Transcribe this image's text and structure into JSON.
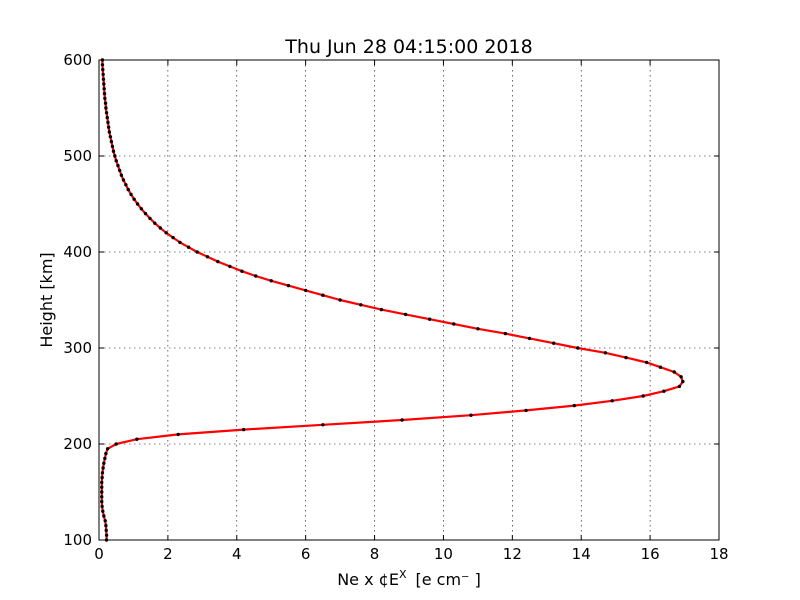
{
  "chart_data": {
    "type": "line",
    "title": "Thu Jun 28 04:15:00 2018",
    "xlabel": "Ne x ¢E",
    "xlabel_superscript": "X",
    "xlabel_units": "[e cm⁻ ]",
    "ylabel": "Height [km]",
    "xlim": [
      0,
      18
    ],
    "ylim": [
      100,
      600
    ],
    "xticks": [
      0,
      2,
      4,
      6,
      8,
      10,
      12,
      14,
      16,
      18
    ],
    "yticks": [
      100,
      200,
      300,
      400,
      500,
      600
    ],
    "grid": true,
    "colors": {
      "line": "#ff0000",
      "marker": "#000000",
      "frame": "#000000"
    },
    "series": [
      {
        "points": [
          {
            "x": 0.22,
            "y": 100
          },
          {
            "x": 0.22,
            "y": 105
          },
          {
            "x": 0.21,
            "y": 110
          },
          {
            "x": 0.2,
            "y": 115
          },
          {
            "x": 0.18,
            "y": 120
          },
          {
            "x": 0.14,
            "y": 125
          },
          {
            "x": 0.11,
            "y": 130
          },
          {
            "x": 0.09,
            "y": 135
          },
          {
            "x": 0.08,
            "y": 140
          },
          {
            "x": 0.08,
            "y": 145
          },
          {
            "x": 0.08,
            "y": 150
          },
          {
            "x": 0.08,
            "y": 155
          },
          {
            "x": 0.08,
            "y": 160
          },
          {
            "x": 0.09,
            "y": 165
          },
          {
            "x": 0.1,
            "y": 170
          },
          {
            "x": 0.12,
            "y": 175
          },
          {
            "x": 0.14,
            "y": 180
          },
          {
            "x": 0.17,
            "y": 185
          },
          {
            "x": 0.2,
            "y": 190
          },
          {
            "x": 0.25,
            "y": 195
          },
          {
            "x": 0.5,
            "y": 200
          },
          {
            "x": 1.1,
            "y": 205
          },
          {
            "x": 2.3,
            "y": 210
          },
          {
            "x": 4.2,
            "y": 215
          },
          {
            "x": 6.5,
            "y": 220
          },
          {
            "x": 8.8,
            "y": 225
          },
          {
            "x": 10.8,
            "y": 230
          },
          {
            "x": 12.4,
            "y": 235
          },
          {
            "x": 13.8,
            "y": 240
          },
          {
            "x": 14.9,
            "y": 245
          },
          {
            "x": 15.8,
            "y": 250
          },
          {
            "x": 16.4,
            "y": 255
          },
          {
            "x": 16.85,
            "y": 260
          },
          {
            "x": 16.95,
            "y": 265
          },
          {
            "x": 16.9,
            "y": 270
          },
          {
            "x": 16.7,
            "y": 275
          },
          {
            "x": 16.3,
            "y": 280
          },
          {
            "x": 15.9,
            "y": 285
          },
          {
            "x": 15.3,
            "y": 290
          },
          {
            "x": 14.7,
            "y": 295
          },
          {
            "x": 13.9,
            "y": 300
          },
          {
            "x": 13.2,
            "y": 305
          },
          {
            "x": 12.5,
            "y": 310
          },
          {
            "x": 11.8,
            "y": 315
          },
          {
            "x": 11.0,
            "y": 320
          },
          {
            "x": 10.3,
            "y": 325
          },
          {
            "x": 9.6,
            "y": 330
          },
          {
            "x": 8.9,
            "y": 335
          },
          {
            "x": 8.2,
            "y": 340
          },
          {
            "x": 7.6,
            "y": 345
          },
          {
            "x": 7.0,
            "y": 350
          },
          {
            "x": 6.5,
            "y": 355
          },
          {
            "x": 6.0,
            "y": 360
          },
          {
            "x": 5.5,
            "y": 365
          },
          {
            "x": 5.0,
            "y": 370
          },
          {
            "x": 4.55,
            "y": 375
          },
          {
            "x": 4.15,
            "y": 380
          },
          {
            "x": 3.8,
            "y": 385
          },
          {
            "x": 3.45,
            "y": 390
          },
          {
            "x": 3.15,
            "y": 395
          },
          {
            "x": 2.85,
            "y": 400
          },
          {
            "x": 2.6,
            "y": 405
          },
          {
            "x": 2.35,
            "y": 410
          },
          {
            "x": 2.15,
            "y": 415
          },
          {
            "x": 1.95,
            "y": 420
          },
          {
            "x": 1.78,
            "y": 425
          },
          {
            "x": 1.62,
            "y": 430
          },
          {
            "x": 1.48,
            "y": 435
          },
          {
            "x": 1.35,
            "y": 440
          },
          {
            "x": 1.23,
            "y": 445
          },
          {
            "x": 1.12,
            "y": 450
          },
          {
            "x": 1.02,
            "y": 455
          },
          {
            "x": 0.93,
            "y": 460
          },
          {
            "x": 0.85,
            "y": 465
          },
          {
            "x": 0.78,
            "y": 470
          },
          {
            "x": 0.71,
            "y": 475
          },
          {
            "x": 0.65,
            "y": 480
          },
          {
            "x": 0.6,
            "y": 485
          },
          {
            "x": 0.55,
            "y": 490
          },
          {
            "x": 0.5,
            "y": 495
          },
          {
            "x": 0.46,
            "y": 500
          },
          {
            "x": 0.42,
            "y": 505
          },
          {
            "x": 0.39,
            "y": 510
          },
          {
            "x": 0.36,
            "y": 515
          },
          {
            "x": 0.33,
            "y": 520
          },
          {
            "x": 0.3,
            "y": 525
          },
          {
            "x": 0.28,
            "y": 530
          },
          {
            "x": 0.26,
            "y": 535
          },
          {
            "x": 0.24,
            "y": 540
          },
          {
            "x": 0.22,
            "y": 545
          },
          {
            "x": 0.2,
            "y": 550
          },
          {
            "x": 0.19,
            "y": 555
          },
          {
            "x": 0.17,
            "y": 560
          },
          {
            "x": 0.16,
            "y": 565
          },
          {
            "x": 0.15,
            "y": 570
          },
          {
            "x": 0.14,
            "y": 575
          },
          {
            "x": 0.13,
            "y": 580
          },
          {
            "x": 0.12,
            "y": 585
          },
          {
            "x": 0.11,
            "y": 590
          },
          {
            "x": 0.1,
            "y": 595
          },
          {
            "x": 0.1,
            "y": 600
          }
        ]
      }
    ]
  }
}
